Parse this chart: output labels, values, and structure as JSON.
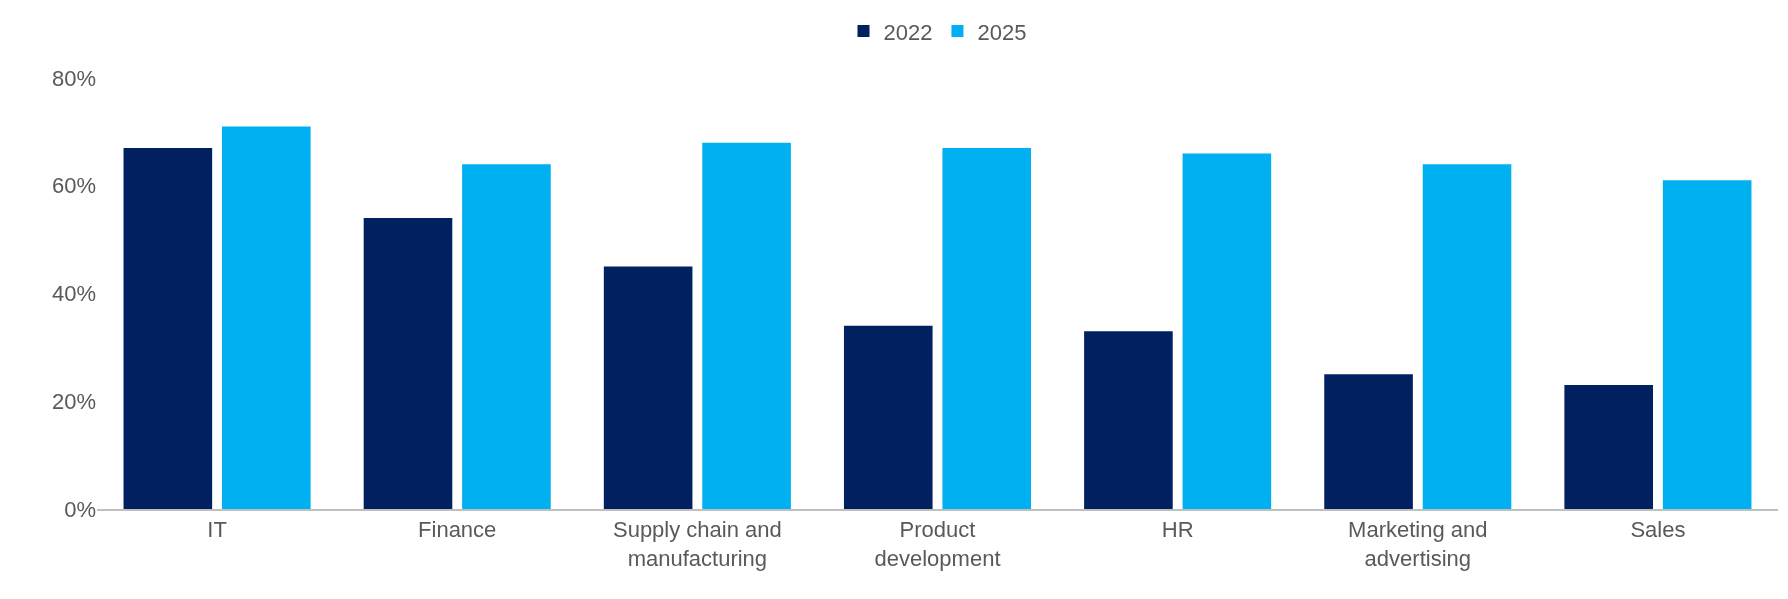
{
  "chart_data": {
    "type": "bar",
    "categories": [
      "IT",
      "Finance",
      "Supply chain and manufacturing",
      "Product development",
      "HR",
      "Marketing and advertising",
      "Sales"
    ],
    "series": [
      {
        "name": "2022",
        "color": "#002060",
        "values": [
          67,
          54,
          45,
          34,
          33,
          25,
          23
        ]
      },
      {
        "name": "2025",
        "color": "#00b0f0",
        "values": [
          71,
          64,
          68,
          67,
          66,
          64,
          61
        ]
      }
    ],
    "ylim": [
      0,
      80
    ],
    "yticks": [
      {
        "value": 0,
        "label": "0%"
      },
      {
        "value": 20,
        "label": "20%"
      },
      {
        "value": 40,
        "label": "40%"
      },
      {
        "value": 60,
        "label": "60%"
      },
      {
        "value": 80,
        "label": "80%"
      }
    ],
    "grid": false,
    "legend": "top"
  }
}
